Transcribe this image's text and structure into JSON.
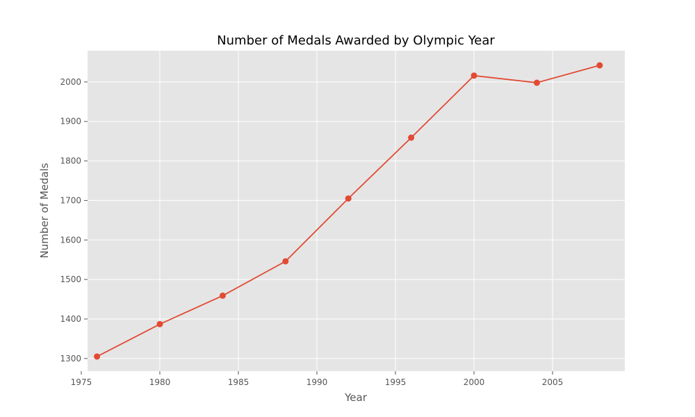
{
  "chart_data": {
    "type": "line",
    "title": "Number of Medals Awarded by Olympic Year",
    "xlabel": "Year",
    "ylabel": "Number of Medals",
    "x": [
      1976,
      1980,
      1984,
      1988,
      1992,
      1996,
      2000,
      2004,
      2008
    ],
    "y": [
      1305,
      1387,
      1459,
      1546,
      1705,
      1859,
      2016,
      1998,
      2042
    ],
    "xlim": [
      1975.4,
      2009.6
    ],
    "ylim": [
      1268,
      2079
    ],
    "xticks": [
      1975,
      1980,
      1985,
      1990,
      1995,
      2000,
      2005
    ],
    "yticks": [
      1300,
      1400,
      1500,
      1600,
      1700,
      1800,
      1900,
      2000
    ],
    "grid": true,
    "legend": "none",
    "colors": {
      "series": "#E24A33",
      "plot_background": "#E5E5E5",
      "grid": "#FFFFFF",
      "tick_text": "#555555"
    },
    "marker": "circle"
  }
}
